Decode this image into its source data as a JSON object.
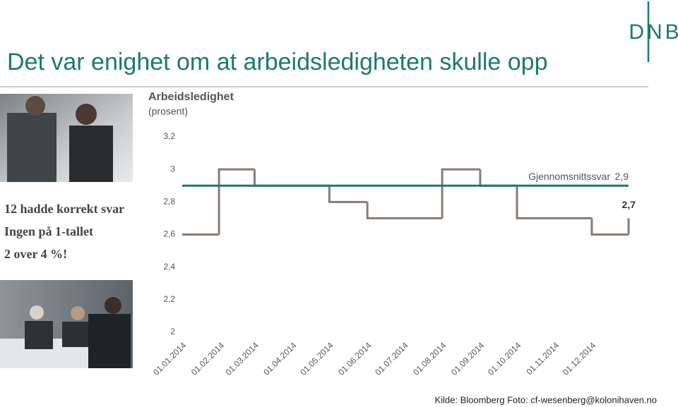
{
  "slide": {
    "title": "Det var enighet om at arbeidsledigheten skulle opp",
    "logo": "DNB",
    "bullets": [
      "12 hadde korrekt svar",
      "Ingen på 1-tallet",
      "2 over 4 %!"
    ],
    "source": "Kilde: Bloomberg Foto: cf-wesenberg@kolonihaven.no"
  },
  "chart_data": {
    "type": "step",
    "title": "Arbeidsledighet",
    "subtitle": "(prosent)",
    "xlim": [
      "2014-01-01",
      "2014-12-31"
    ],
    "xticks": [
      {
        "value": "2014-01-01",
        "label": "01.01.2014"
      },
      {
        "value": "2014-02-01",
        "label": "01.02.2014"
      },
      {
        "value": "2014-03-01",
        "label": "01.03.2014"
      },
      {
        "value": "2014-04-01",
        "label": "01.04.2014"
      },
      {
        "value": "2014-05-01",
        "label": "01.05.2014"
      },
      {
        "value": "2014-06-01",
        "label": "01.06.2014"
      },
      {
        "value": "2014-07-01",
        "label": "01.07.2014"
      },
      {
        "value": "2014-08-01",
        "label": "01.08.2014"
      },
      {
        "value": "2014-09-01",
        "label": "01.09.2014"
      },
      {
        "value": "2014-10-01",
        "label": "01.10.2014"
      },
      {
        "value": "2014-11-01",
        "label": "01.11.2014"
      },
      {
        "value": "2014-12-01",
        "label": "01.12.2014"
      }
    ],
    "ylim": [
      2,
      3.2
    ],
    "yticks": [
      2,
      {
        "value": 2.2,
        "label": "2,2"
      },
      {
        "value": 2.4,
        "label": "2,4"
      },
      {
        "value": 2.6,
        "label": "2,6"
      },
      {
        "value": 2.8,
        "label": "2,8"
      },
      3,
      {
        "value": 3.2,
        "label": "3,2"
      }
    ],
    "grid": false,
    "x": [
      "2014-01-01",
      "2014-01-31",
      "2014-03-01",
      "2014-05-01",
      "2014-06-01",
      "2014-08-01",
      "2014-09-01",
      "2014-10-01",
      "2014-12-01",
      "2014-12-31"
    ],
    "series": [
      {
        "color": "#877c74",
        "values": [
          2.6,
          3.0,
          2.9,
          2.8,
          2.7,
          3.0,
          2.9,
          2.7,
          2.6,
          2.7
        ],
        "value_labels": [
          null,
          null,
          null,
          null,
          null,
          null,
          null,
          null,
          null,
          "2,7"
        ]
      }
    ],
    "average": {
      "name": "Gjennomsnittssvar",
      "value": 2.9,
      "label": "2,9",
      "color": "#1b7a70"
    }
  }
}
